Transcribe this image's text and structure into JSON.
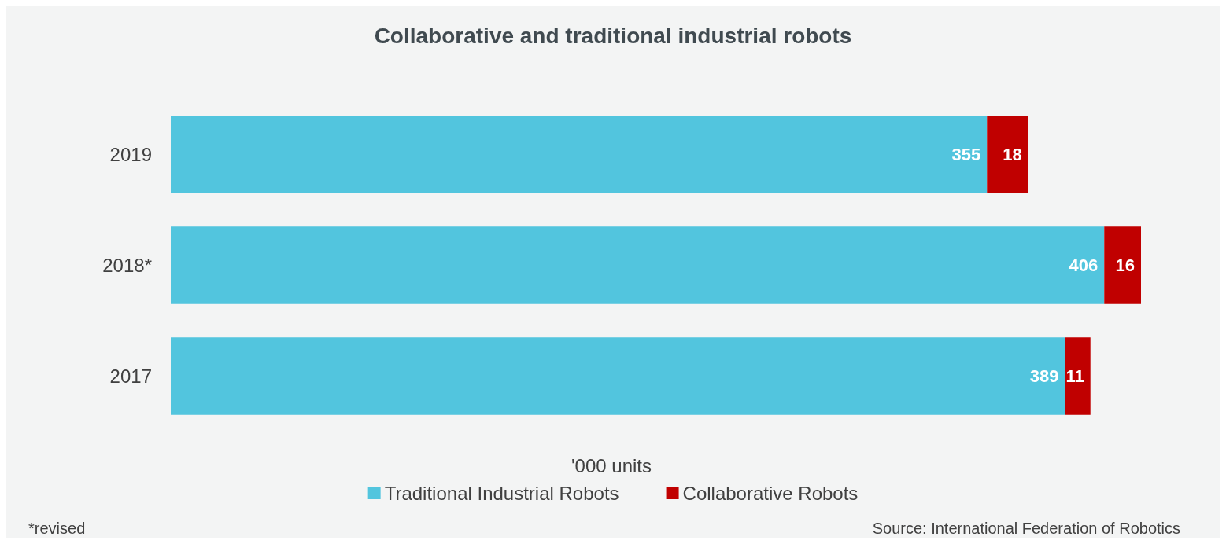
{
  "chart_data": {
    "type": "bar",
    "title": "Collaborative and traditional industrial robots",
    "orientation": "horizontal",
    "stacked": true,
    "categories": [
      "2019",
      "2018*",
      "2017"
    ],
    "series": [
      {
        "name": "Traditional Industrial Robots",
        "color": "#52c5de",
        "values": [
          355,
          406,
          389
        ]
      },
      {
        "name": "Collaborative Robots",
        "color": "#c00000",
        "values": [
          18,
          16,
          11
        ]
      }
    ],
    "xlabel": "'000 units",
    "data_labels": true,
    "legend": "bottom",
    "tick_labels": "y",
    "annotations": [
      "*revised",
      "Source: International Federation of Robotics"
    ]
  }
}
